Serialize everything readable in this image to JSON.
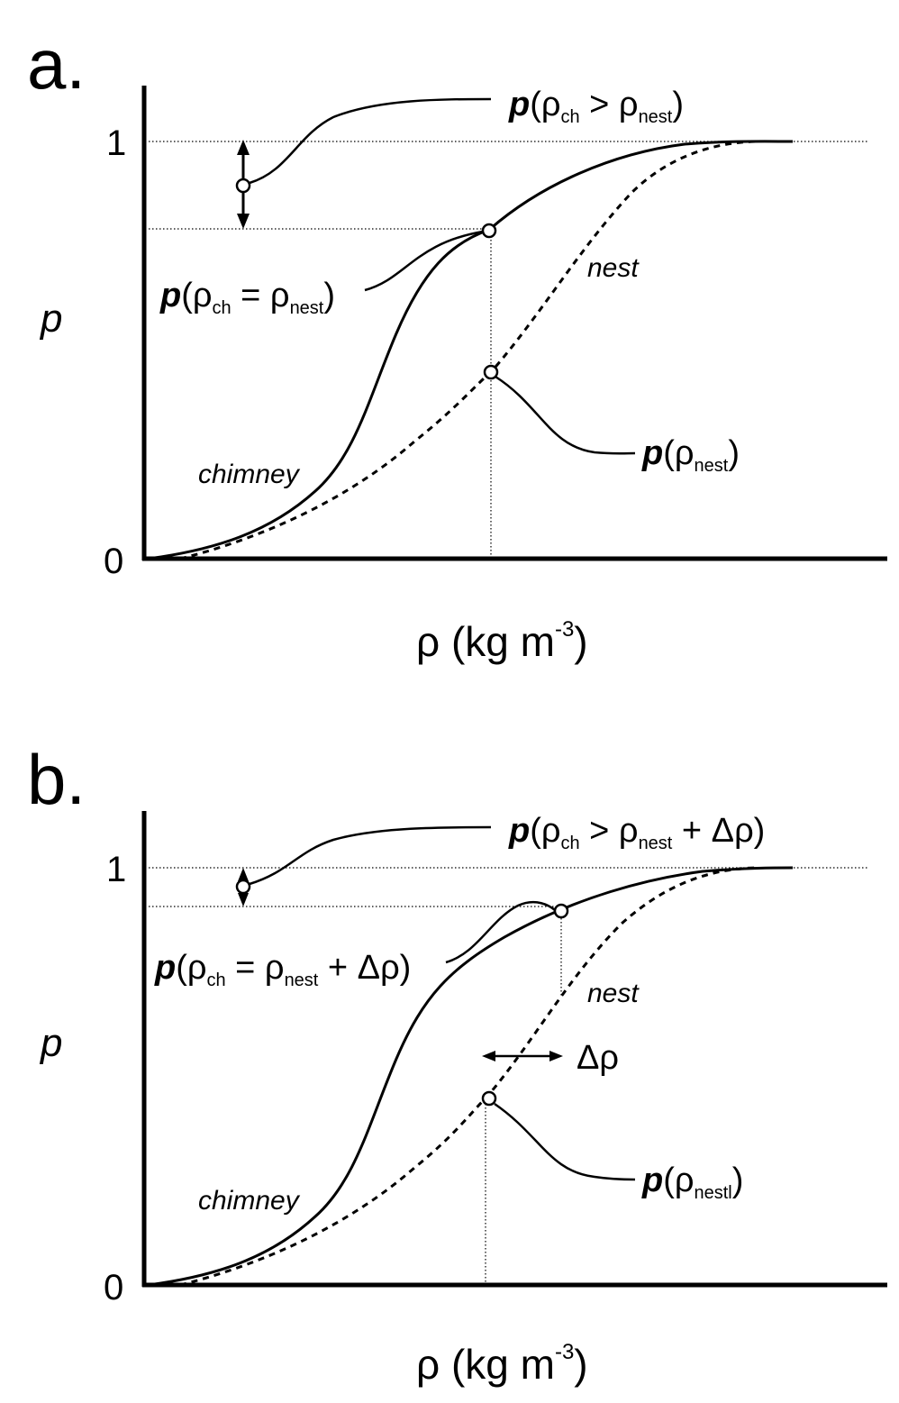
{
  "figure": {
    "panels": [
      {
        "label": "a.",
        "y_label": "p",
        "x_label_main": "ρ (kg m",
        "x_label_sup": "-3",
        "x_label_close": ")",
        "tick_1": "1",
        "tick_0": "0",
        "chimney_label": "chimney",
        "nest_label": "nest",
        "ann_top": {
          "p": "p",
          "open": "(ρ",
          "sub1": "ch",
          "mid": " > ρ",
          "sub2": "nest",
          "close": ")"
        },
        "ann_eq": {
          "p": "p",
          "open": "(ρ",
          "sub1": "ch",
          "mid": " = ρ",
          "sub2": "nest",
          "close": ")"
        },
        "ann_nest": {
          "p": "p",
          "open": "(ρ",
          "sub1": "nest",
          "close": ")"
        }
      },
      {
        "label": "b.",
        "y_label": "p",
        "x_label_main": "ρ (kg m",
        "x_label_sup": "-3",
        "x_label_close": ")",
        "tick_1": "1",
        "tick_0": "0",
        "chimney_label": "chimney",
        "nest_label": "nest",
        "delta_label": "Δρ",
        "ann_top": {
          "p": "p",
          "open": "(ρ",
          "sub1": "ch",
          "mid": " > ρ",
          "sub2": "nest",
          "close": " + Δρ)"
        },
        "ann_eq": {
          "p": "p",
          "open": "(ρ",
          "sub1": "ch",
          "mid": " = ρ",
          "sub2": "nest",
          "close": " + Δρ)"
        },
        "ann_nest": {
          "p": "p",
          "open": "(ρ",
          "sub1": "nestl",
          "close": ")"
        }
      }
    ],
    "colors": {
      "ink": "#000000",
      "background": "#ffffff"
    }
  }
}
